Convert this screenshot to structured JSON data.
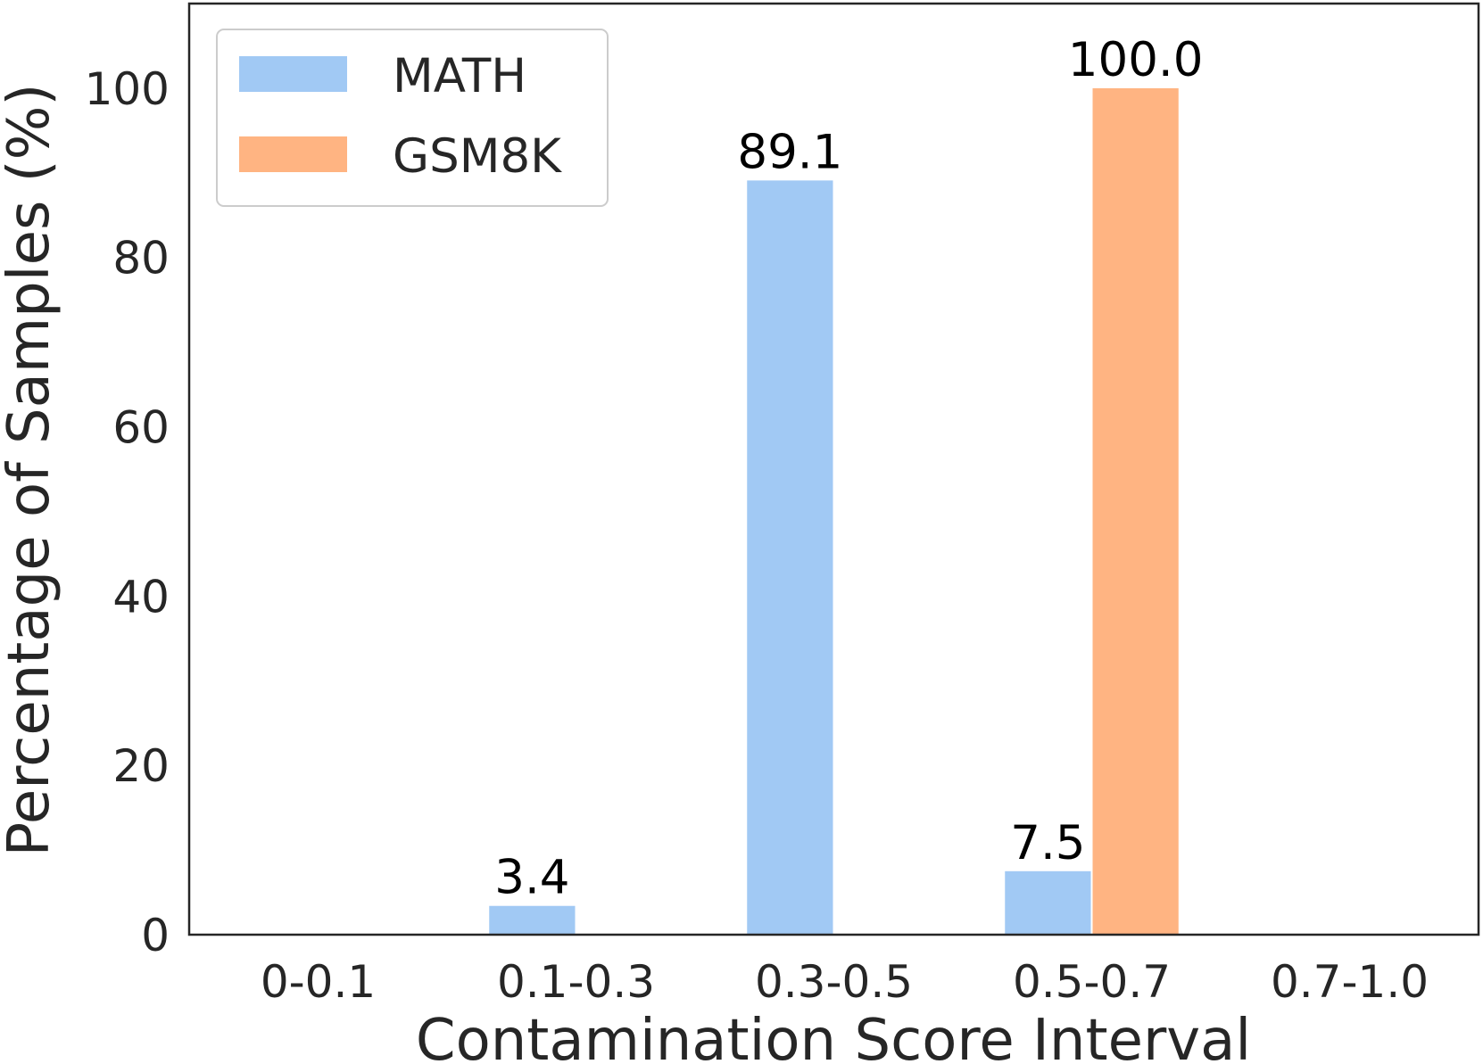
{
  "chart_data": {
    "type": "bar",
    "xlabel": "Contamination Score Interval",
    "ylabel": "Percentage of Samples (%)",
    "categories": [
      "0-0.1",
      "0.1-0.3",
      "0.3-0.5",
      "0.5-0.7",
      "0.7-1.0"
    ],
    "series": [
      {
        "name": "MATH",
        "color": "#a1c9f4",
        "values": [
          0,
          3.4,
          89.1,
          7.5,
          0
        ],
        "labels": [
          "",
          "3.4",
          "89.1",
          "7.5",
          ""
        ]
      },
      {
        "name": "GSM8K",
        "color": "#ffb482",
        "values": [
          0,
          0,
          0,
          100.0,
          0
        ],
        "labels": [
          "",
          "",
          "",
          "100.0",
          ""
        ]
      }
    ],
    "ylim": [
      0,
      110
    ],
    "yticks": [
      0,
      20,
      40,
      60,
      80,
      100
    ],
    "grid": false,
    "legend_position": "top-left"
  }
}
